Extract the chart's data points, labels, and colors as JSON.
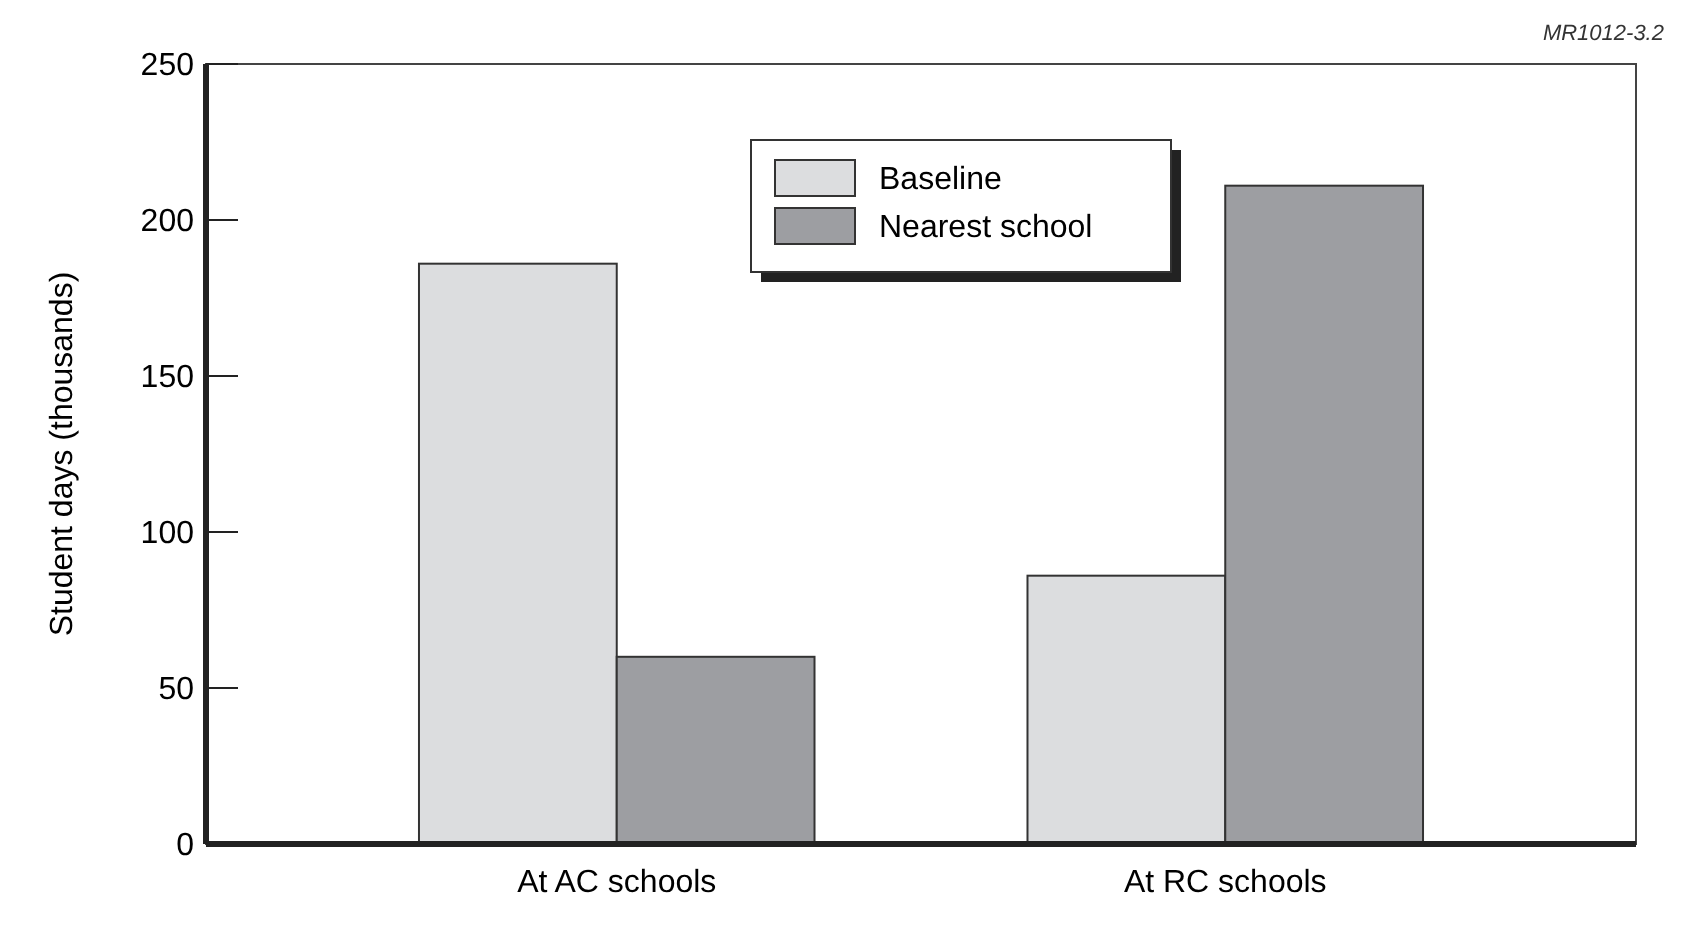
{
  "chart_data": {
    "type": "bar",
    "ylabel": "Student days (thousands)",
    "categories": [
      "At AC schools",
      "At RC schools"
    ],
    "series": [
      {
        "name": "Baseline",
        "color": "#dcdddf",
        "values": [
          186,
          86
        ]
      },
      {
        "name": "Nearest school",
        "color": "#9d9ea2",
        "values": [
          60,
          211
        ]
      }
    ],
    "ylim": [
      0,
      250
    ],
    "yticks": [
      0,
      50,
      100,
      150,
      200,
      250
    ],
    "grid": false,
    "legend": "top",
    "annotations": [
      "MR1012-3.2"
    ]
  }
}
